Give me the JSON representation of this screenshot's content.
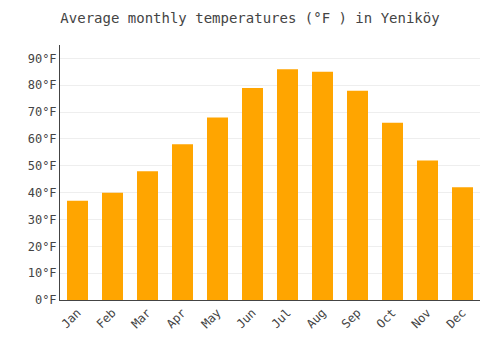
{
  "chart_data": {
    "type": "bar",
    "title": "Average monthly temperatures (°F ) in Yenikö­y",
    "categories": [
      "Jan",
      "Feb",
      "Mar",
      "Apr",
      "May",
      "Jun",
      "Jul",
      "Aug",
      "Sep",
      "Oct",
      "Nov",
      "Dec"
    ],
    "values": [
      37,
      40,
      48,
      58,
      68,
      79,
      86,
      85,
      78,
      66,
      52,
      42
    ],
    "color": "#FFA500",
    "ylim": [
      0,
      95
    ],
    "yticks": [
      {
        "value": 0,
        "label": "0°F"
      },
      {
        "value": 10,
        "label": "10°F"
      },
      {
        "value": 20,
        "label": "20°F"
      },
      {
        "value": 30,
        "label": "30°F"
      },
      {
        "value": 40,
        "label": "40°F"
      },
      {
        "value": 50,
        "label": "50°F"
      },
      {
        "value": 60,
        "label": "60°F"
      },
      {
        "value": 70,
        "label": "70°F"
      },
      {
        "value": 80,
        "label": "80°F"
      },
      {
        "value": 90,
        "label": "90°F"
      }
    ],
    "grid": true
  }
}
